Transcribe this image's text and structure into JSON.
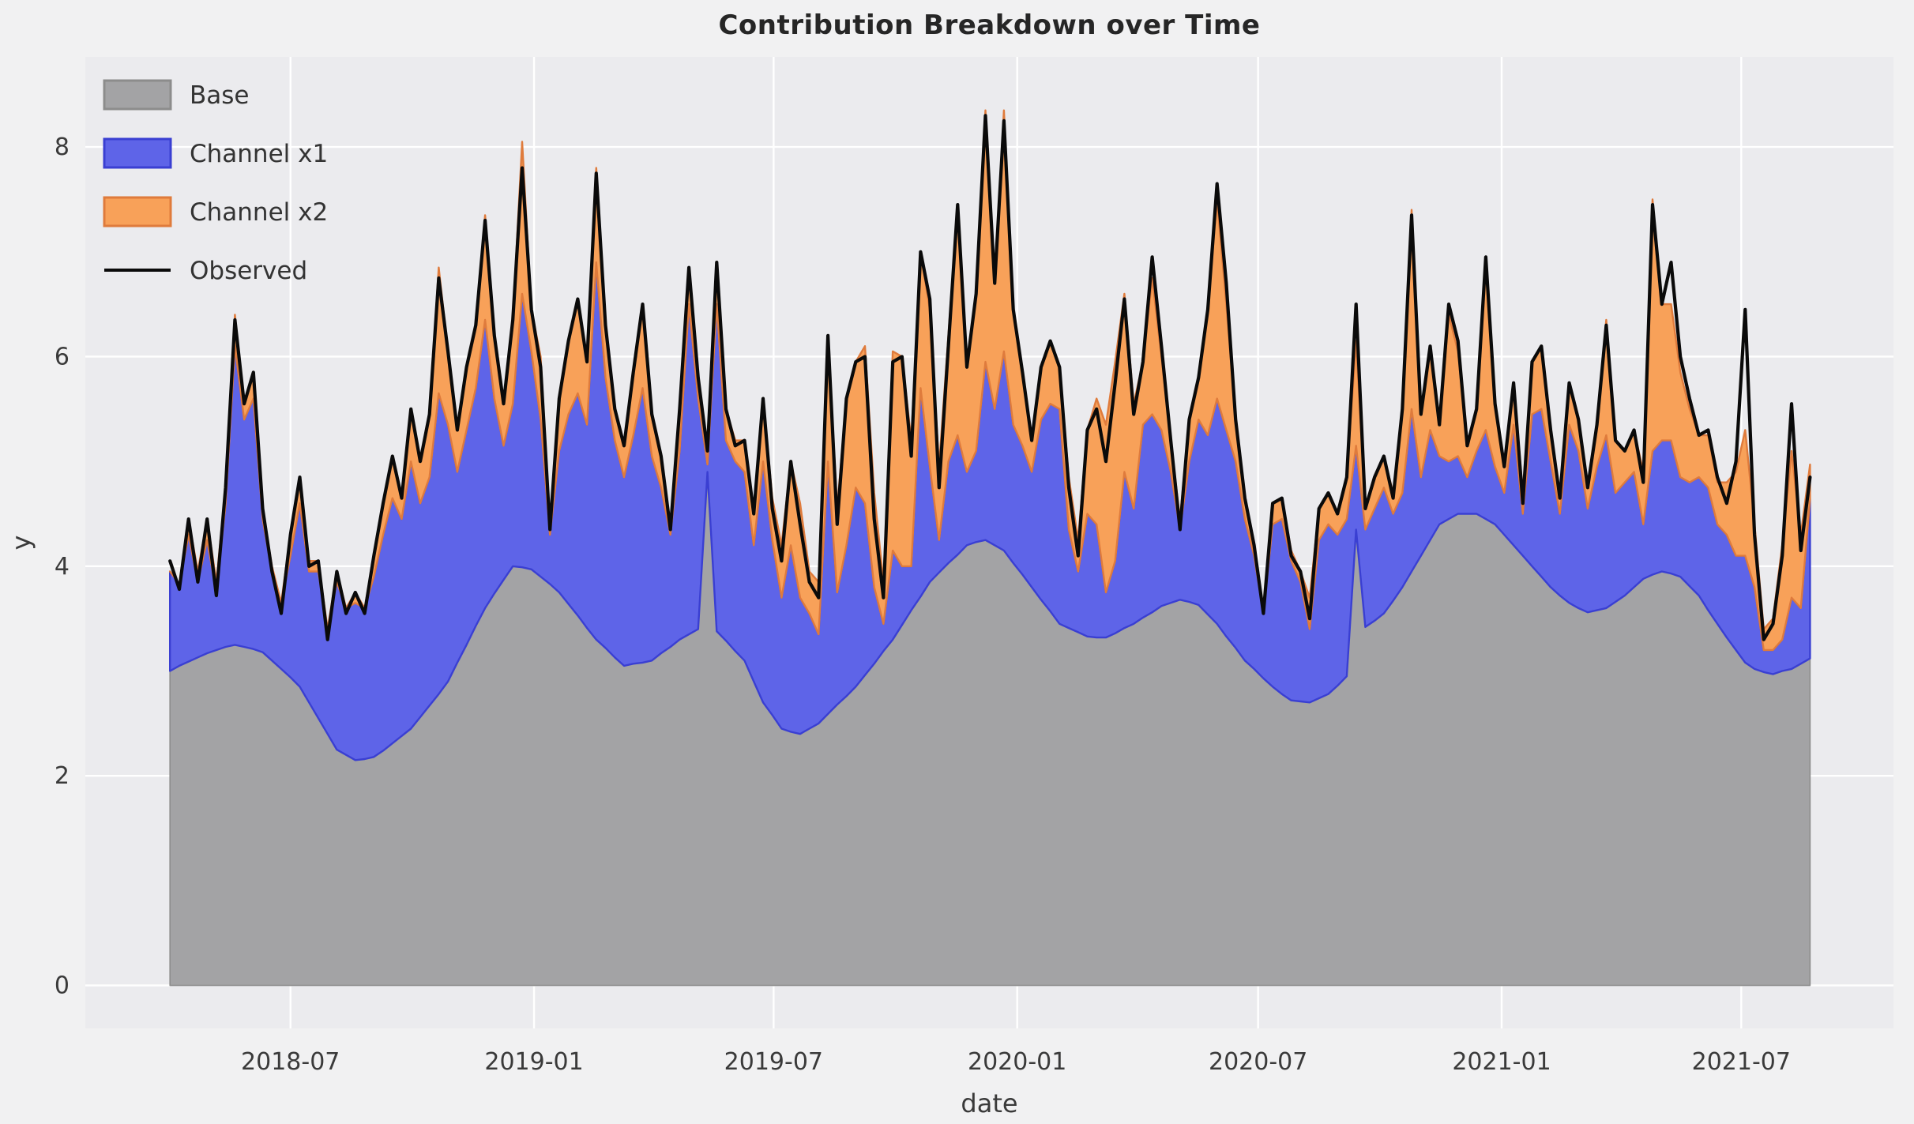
{
  "chart_data": {
    "type": "area",
    "subtype": "stacked-area-with-line",
    "title": "Contribution Breakdown over Time",
    "xlabel": "date",
    "ylabel": "y",
    "x_start": "2018-04-01",
    "x_step_days": 7,
    "n_points": 178,
    "xlim_dates": [
      "2018-01-27",
      "2021-10-24"
    ],
    "ylim": [
      -0.41,
      8.86
    ],
    "y_ticks": [
      "0",
      "2",
      "4",
      "6",
      "8"
    ],
    "y_tick_values": [
      0,
      2,
      4,
      6,
      8
    ],
    "x_tick_labels": [
      "2018-07",
      "2019-01",
      "2019-07",
      "2020-01",
      "2020-07",
      "2021-01",
      "2021-07"
    ],
    "x_tick_dates": [
      "2018-07-01",
      "2019-01-01",
      "2019-07-01",
      "2020-01-01",
      "2020-07-01",
      "2021-01-01",
      "2021-07-01"
    ],
    "grid": true,
    "legend_position": "upper-left",
    "style": {
      "figure_bg": "#F1F1F2",
      "axes_bg": "#EBEBEE",
      "grid_color": "#FFFFFF",
      "text_color": "#3A3A3A",
      "title_color": "#262626"
    },
    "series": [
      {
        "name": "Base",
        "type": "area",
        "stack": true,
        "fill": "#A3A3A5",
        "edge": "#8C8C8C",
        "values": [
          3.0,
          3.05,
          3.09,
          3.13,
          3.17,
          3.2,
          3.23,
          3.25,
          3.23,
          3.21,
          3.18,
          3.1,
          3.02,
          2.94,
          2.85,
          2.7,
          2.55,
          2.4,
          2.25,
          2.2,
          2.15,
          2.16,
          2.18,
          2.24,
          2.31,
          2.38,
          2.45,
          2.56,
          2.67,
          2.78,
          2.9,
          3.08,
          3.25,
          3.43,
          3.6,
          3.74,
          3.87,
          4.0,
          3.99,
          3.97,
          3.9,
          3.83,
          3.75,
          3.64,
          3.53,
          3.41,
          3.3,
          3.22,
          3.13,
          3.05,
          3.07,
          3.08,
          3.1,
          3.17,
          3.23,
          3.3,
          3.35,
          3.4,
          4.9,
          3.38,
          3.29,
          3.19,
          3.1,
          2.9,
          2.7,
          2.58,
          2.45,
          2.42,
          2.4,
          2.45,
          2.5,
          2.59,
          2.68,
          2.76,
          2.85,
          2.96,
          3.07,
          3.19,
          3.3,
          3.44,
          3.58,
          3.71,
          3.85,
          3.94,
          4.03,
          4.11,
          4.2,
          4.23,
          4.25,
          4.2,
          4.15,
          4.03,
          3.92,
          3.8,
          3.68,
          3.57,
          3.45,
          3.41,
          3.37,
          3.33,
          3.32,
          3.32,
          3.36,
          3.41,
          3.45,
          3.51,
          3.56,
          3.62,
          3.65,
          3.68,
          3.66,
          3.63,
          3.54,
          3.45,
          3.33,
          3.22,
          3.1,
          3.02,
          2.93,
          2.85,
          2.78,
          2.72,
          2.71,
          2.7,
          2.74,
          2.78,
          2.86,
          2.95,
          4.35,
          3.42,
          3.48,
          3.55,
          3.67,
          3.8,
          3.95,
          4.1,
          4.25,
          4.4,
          4.45,
          4.5,
          4.5,
          4.5,
          4.45,
          4.4,
          4.3,
          4.2,
          4.1,
          4.0,
          3.9,
          3.8,
          3.72,
          3.65,
          3.6,
          3.56,
          3.58,
          3.6,
          3.66,
          3.72,
          3.8,
          3.88,
          3.92,
          3.95,
          3.93,
          3.9,
          3.81,
          3.72,
          3.58,
          3.45,
          3.32,
          3.2,
          3.08,
          3.02,
          2.99,
          2.97,
          3.0,
          3.02,
          3.07,
          3.12
        ]
      },
      {
        "name": "Channel x1",
        "type": "area",
        "stack": true,
        "fill": "#5E64E8",
        "edge": "#3A3FD2",
        "values": [
          0.95,
          0.78,
          1.21,
          0.72,
          1.08,
          0.55,
          1.37,
          2.85,
          2.17,
          2.39,
          1.27,
          0.85,
          0.63,
          1.16,
          1.75,
          1.25,
          1.4,
          1.0,
          1.6,
          1.4,
          1.5,
          1.44,
          1.72,
          2.06,
          2.34,
          2.07,
          2.55,
          2.04,
          2.18,
          2.87,
          2.45,
          1.82,
          2.05,
          2.27,
          2.75,
          1.86,
          1.28,
          1.55,
          2.61,
          2.08,
          1.5,
          0.47,
          1.35,
          1.81,
          2.12,
          1.94,
          3.6,
          2.58,
          2.07,
          1.8,
          2.18,
          2.62,
          1.95,
          1.58,
          1.07,
          1.8,
          3.15,
          2.2,
          0.07,
          3.12,
          1.91,
          1.81,
          1.8,
          1.3,
          2.3,
          1.67,
          1.25,
          1.78,
          1.3,
          1.1,
          0.85,
          2.41,
          1.07,
          1.44,
          1.9,
          1.64,
          0.73,
          0.26,
          0.85,
          0.56,
          0.42,
          1.99,
          1.1,
          0.31,
          0.97,
          1.14,
          0.7,
          0.87,
          1.7,
          1.3,
          1.9,
          1.32,
          1.23,
          1.1,
          1.72,
          1.98,
          2.05,
          0.94,
          0.58,
          1.17,
          1.08,
          0.43,
          0.69,
          1.49,
          1.1,
          1.84,
          1.89,
          1.68,
          1.25,
          0.67,
          1.34,
          1.77,
          1.71,
          2.15,
          1.97,
          1.78,
          1.35,
          1.08,
          0.62,
          1.55,
          1.67,
          1.33,
          1.14,
          0.7,
          1.51,
          1.62,
          1.44,
          1.5,
          0.8,
          0.93,
          1.07,
          1.2,
          0.83,
          0.9,
          1.55,
          0.75,
          1.05,
          0.65,
          0.55,
          0.55,
          0.35,
          0.6,
          0.85,
          0.55,
          0.4,
          1.15,
          0.4,
          1.45,
          1.6,
          1.2,
          0.78,
          1.7,
          1.5,
          0.99,
          1.37,
          1.65,
          1.04,
          1.08,
          1.1,
          0.52,
          1.18,
          1.25,
          1.27,
          0.95,
          0.99,
          1.13,
          1.17,
          0.95,
          0.98,
          0.9,
          1.02,
          0.78,
          0.21,
          0.23,
          0.3,
          0.68,
          0.53,
          1.52
        ]
      },
      {
        "name": "Channel x2",
        "type": "area",
        "stack": true,
        "fill": "#F8A159",
        "edge": "#DF7B3C",
        "values": [
          0.0,
          0.0,
          0.15,
          0.1,
          0.2,
          0.1,
          0.15,
          0.3,
          0.15,
          0.25,
          0.1,
          0.05,
          0.0,
          0.2,
          0.25,
          0.1,
          0.1,
          0.0,
          0.1,
          0.0,
          0.1,
          0.0,
          0.2,
          0.3,
          0.4,
          0.2,
          0.5,
          0.4,
          0.6,
          1.2,
          0.7,
          0.4,
          0.6,
          0.6,
          1.0,
          0.6,
          0.4,
          0.8,
          1.45,
          0.4,
          0.6,
          0.1,
          0.5,
          0.7,
          0.9,
          0.6,
          0.9,
          0.5,
          0.3,
          0.3,
          0.6,
          0.8,
          0.4,
          0.3,
          0.1,
          0.4,
          0.35,
          0.2,
          0.05,
          0.4,
          0.3,
          0.2,
          0.3,
          0.3,
          0.6,
          0.4,
          0.5,
          0.8,
          0.9,
          0.4,
          0.5,
          1.2,
          0.8,
          1.4,
          1.2,
          1.5,
          0.9,
          0.4,
          1.9,
          2.0,
          1.2,
          1.3,
          1.5,
          0.7,
          1.2,
          2.2,
          1.0,
          1.5,
          2.4,
          1.2,
          2.3,
          1.1,
          0.7,
          0.3,
          0.5,
          0.6,
          0.4,
          0.5,
          0.3,
          0.8,
          1.2,
          1.6,
          1.9,
          1.7,
          1.0,
          0.6,
          1.3,
          0.7,
          0.3,
          0.1,
          0.4,
          0.4,
          1.2,
          1.9,
          1.2,
          0.4,
          0.2,
          0.1,
          0.05,
          0.2,
          0.2,
          0.1,
          0.1,
          0.3,
          0.3,
          0.3,
          0.2,
          0.4,
          1.0,
          0.2,
          0.3,
          0.3,
          0.2,
          0.8,
          1.9,
          0.6,
          0.8,
          0.3,
          1.4,
          1.0,
          0.3,
          0.4,
          1.6,
          0.6,
          0.3,
          0.4,
          0.2,
          0.5,
          0.6,
          0.3,
          0.2,
          0.4,
          0.3,
          0.2,
          0.4,
          1.1,
          0.5,
          0.3,
          0.4,
          0.5,
          2.4,
          1.3,
          1.3,
          1.0,
          0.7,
          0.4,
          0.5,
          0.4,
          0.5,
          0.8,
          1.2,
          0.6,
          0.2,
          0.3,
          0.9,
          1.4,
          0.7,
          0.33
        ]
      },
      {
        "name": "Observed",
        "type": "line",
        "stack": false,
        "color": "#0A0A0A",
        "values": [
          4.05,
          3.78,
          4.45,
          3.85,
          4.45,
          3.72,
          4.75,
          6.35,
          5.55,
          5.85,
          4.55,
          3.95,
          3.55,
          4.3,
          4.85,
          4.0,
          4.05,
          3.3,
          3.95,
          3.55,
          3.75,
          3.55,
          4.1,
          4.6,
          5.05,
          4.65,
          5.5,
          5.0,
          5.45,
          6.75,
          6.05,
          5.3,
          5.9,
          6.3,
          7.3,
          6.2,
          5.55,
          6.35,
          7.8,
          6.45,
          5.9,
          4.35,
          5.6,
          6.15,
          6.55,
          5.95,
          7.75,
          6.3,
          5.5,
          5.15,
          5.85,
          6.5,
          5.45,
          5.05,
          4.35,
          5.5,
          6.85,
          5.8,
          5.1,
          6.9,
          5.5,
          5.15,
          5.2,
          4.5,
          5.6,
          4.55,
          4.05,
          5.0,
          4.4,
          3.85,
          3.7,
          6.2,
          4.4,
          5.6,
          5.95,
          6.0,
          4.45,
          3.7,
          5.95,
          6.0,
          5.05,
          7.0,
          6.55,
          4.75,
          6.1,
          7.45,
          5.9,
          6.6,
          8.3,
          6.7,
          8.25,
          6.45,
          5.85,
          5.2,
          5.9,
          6.15,
          5.9,
          4.75,
          4.1,
          5.3,
          5.5,
          5.0,
          5.75,
          6.55,
          5.45,
          5.95,
          6.95,
          6.1,
          5.2,
          4.35,
          5.4,
          5.8,
          6.45,
          7.65,
          6.7,
          5.4,
          4.65,
          4.2,
          3.55,
          4.6,
          4.65,
          4.1,
          3.95,
          3.5,
          4.55,
          4.7,
          4.5,
          4.85,
          6.5,
          4.55,
          4.85,
          5.05,
          4.65,
          5.5,
          7.35,
          5.45,
          6.1,
          5.35,
          6.5,
          6.15,
          5.15,
          5.5,
          6.95,
          5.55,
          4.95,
          5.75,
          4.6,
          5.95,
          6.1,
          5.3,
          4.65,
          5.75,
          5.4,
          4.75,
          5.35,
          6.3,
          5.2,
          5.1,
          5.3,
          4.8,
          7.45,
          6.5,
          6.9,
          6.0,
          5.6,
          5.25,
          5.3,
          4.85,
          4.6,
          5.0,
          6.45,
          4.3,
          3.3,
          3.45,
          4.1,
          5.55,
          4.15,
          4.85
        ]
      }
    ]
  }
}
